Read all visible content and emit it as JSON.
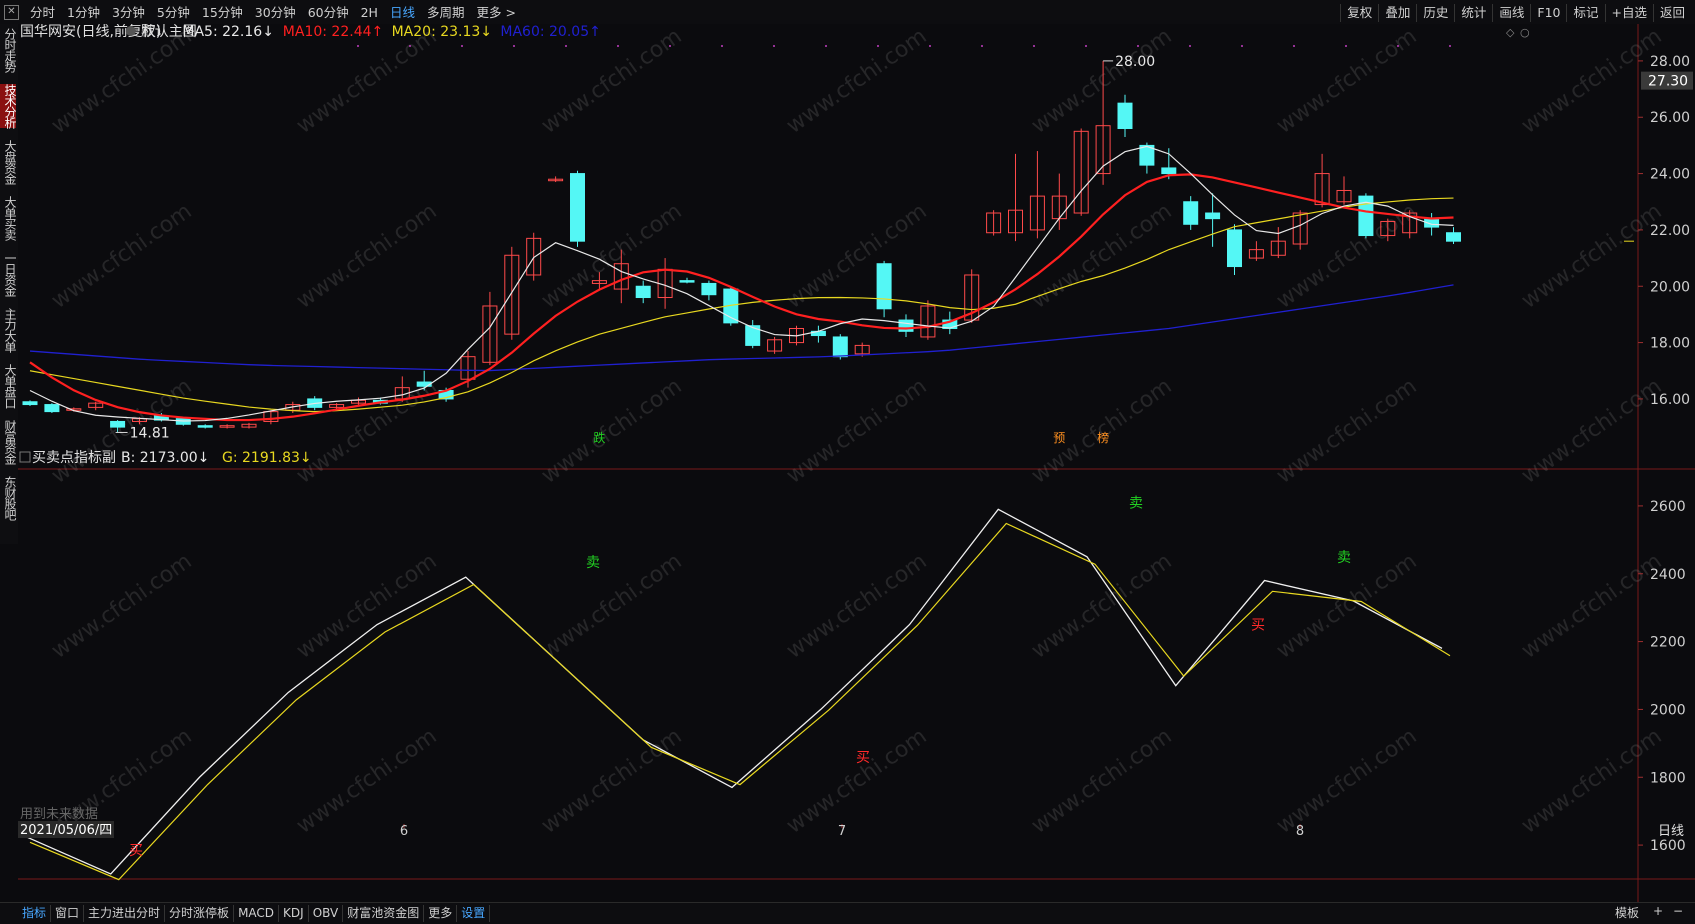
{
  "toolbar": {
    "periods": [
      "分时",
      "1分钟",
      "3分钟",
      "5分钟",
      "15分钟",
      "30分钟",
      "60分钟",
      "2H",
      "日线",
      "多周期",
      "更多 >"
    ],
    "active_period": "日线",
    "right_tools": [
      "复权",
      "叠加",
      "历史",
      "统计",
      "画线",
      "F10",
      "标记",
      "+自选",
      "返回"
    ]
  },
  "sidebar": {
    "tabs": [
      "分时走势",
      "技术分析",
      "大盘资金",
      "大单买卖",
      "一日资金",
      "主力大单",
      "大单盘口",
      "财富资金",
      "东财股吧"
    ],
    "active_tab": "技术分析"
  },
  "main_legend": {
    "stock": "国华网安",
    "mode": "(日线,前复权)",
    "template": "默认主图",
    "ma5": "MA5: 22.16↓",
    "ma10": "MA10: 22.44↑",
    "ma20": "MA20: 23.13↓",
    "ma60": "MA60: 20.05↑"
  },
  "sub_legend": {
    "name": "买卖点指标副",
    "b": "B: 2173.00↓",
    "g": "G: 2191.83↓"
  },
  "colors": {
    "up": "#ff4a4a",
    "down": "#54f7f5",
    "ma5": "#e8e8e8",
    "ma10": "#ff2020",
    "ma20": "#e8d820",
    "ma60": "#2020d0",
    "buy": "#ff2a2a",
    "sell": "#22d022"
  },
  "price_axis": [
    "28.00",
    "26.00",
    "24.00",
    "22.00",
    "20.00",
    "18.00",
    "16.00"
  ],
  "current_price": "27.30",
  "high_label": "28.00",
  "low_label": "14.81",
  "markers": [
    "跌",
    "预",
    "榜"
  ],
  "indicator_axis": [
    "2600",
    "2400",
    "2200",
    "2000",
    "1800",
    "1600"
  ],
  "buy_label": "买",
  "sell_label": "卖",
  "future_note": "用到未来数据",
  "date_label": "2021/05/06/四",
  "month_labels": [
    "6",
    "7",
    "8"
  ],
  "period_label": "日线",
  "watermark": "www.cfchi.com",
  "bottom_tabs": [
    "指标",
    "窗口",
    "主力进出分时",
    "分时涨停板",
    "MACD",
    "KDJ",
    "OBV",
    "财富池资金图",
    "更多",
    "设置"
  ],
  "bottom_active": [
    "指标",
    "设置"
  ],
  "bottom_right": [
    "模板",
    "+",
    "−"
  ],
  "chart_data": {
    "type": "candlestick",
    "candles": [
      [
        15.9,
        15.8,
        15.95,
        15.75
      ],
      [
        15.8,
        15.55,
        15.85,
        15.5
      ],
      [
        15.6,
        15.65,
        15.7,
        15.55
      ],
      [
        15.7,
        15.85,
        15.9,
        15.6
      ],
      [
        15.2,
        15.0,
        15.25,
        14.81
      ],
      [
        15.2,
        15.3,
        15.35,
        15.1
      ],
      [
        15.4,
        15.25,
        15.5,
        15.2
      ],
      [
        15.3,
        15.1,
        15.35,
        15.05
      ],
      [
        15.05,
        15.0,
        15.1,
        14.95
      ],
      [
        15.0,
        15.05,
        15.1,
        14.95
      ],
      [
        15.0,
        15.1,
        15.15,
        14.95
      ],
      [
        15.2,
        15.55,
        15.6,
        15.1
      ],
      [
        15.6,
        15.8,
        15.9,
        15.5
      ],
      [
        16.0,
        15.7,
        16.1,
        15.6
      ],
      [
        15.7,
        15.8,
        15.85,
        15.6
      ],
      [
        15.85,
        15.95,
        16.05,
        15.8
      ],
      [
        15.95,
        15.85,
        16.05,
        15.8
      ],
      [
        16.0,
        16.4,
        16.8,
        15.9
      ],
      [
        16.6,
        16.45,
        17.0,
        16.3
      ],
      [
        16.3,
        16.0,
        16.4,
        15.9
      ],
      [
        16.7,
        17.5,
        17.7,
        16.4
      ],
      [
        17.3,
        19.3,
        19.8,
        17.2
      ],
      [
        18.3,
        21.1,
        21.4,
        18.1
      ],
      [
        20.4,
        21.7,
        21.9,
        20.2
      ],
      [
        23.8,
        23.8,
        23.9,
        23.7
      ],
      [
        24.0,
        21.6,
        24.1,
        21.4
      ],
      [
        20.1,
        20.2,
        20.5,
        19.9
      ],
      [
        19.9,
        20.8,
        21.3,
        19.4
      ],
      [
        20.0,
        19.6,
        20.2,
        19.4
      ],
      [
        19.6,
        20.6,
        21.0,
        19.2
      ],
      [
        20.2,
        20.15,
        20.3,
        20.1
      ],
      [
        20.1,
        19.7,
        20.2,
        19.5
      ],
      [
        19.9,
        18.7,
        20.0,
        18.6
      ],
      [
        18.6,
        17.9,
        18.8,
        17.8
      ],
      [
        17.7,
        18.1,
        18.2,
        17.6
      ],
      [
        18.0,
        18.5,
        18.6,
        17.9
      ],
      [
        18.4,
        18.25,
        18.6,
        18.0
      ],
      [
        18.2,
        17.5,
        18.3,
        17.4
      ],
      [
        17.6,
        17.9,
        18.0,
        17.5
      ],
      [
        20.8,
        19.2,
        20.9,
        18.9
      ],
      [
        18.8,
        18.4,
        19.0,
        18.2
      ],
      [
        18.2,
        19.3,
        19.5,
        18.1
      ],
      [
        18.8,
        18.5,
        19.1,
        18.3
      ],
      [
        18.8,
        20.4,
        20.6,
        18.7
      ],
      [
        21.9,
        22.6,
        22.7,
        21.8
      ],
      [
        21.9,
        22.7,
        24.7,
        21.6
      ],
      [
        22.0,
        23.2,
        24.8,
        21.7
      ],
      [
        22.4,
        23.2,
        24.0,
        22.0
      ],
      [
        22.6,
        25.5,
        25.6,
        22.5
      ],
      [
        24.0,
        25.7,
        28.0,
        23.6
      ],
      [
        26.5,
        25.6,
        26.8,
        25.3
      ],
      [
        25.0,
        24.3,
        25.1,
        24.0
      ],
      [
        24.2,
        24.0,
        24.9,
        23.8
      ],
      [
        23.0,
        22.2,
        23.2,
        22.0
      ],
      [
        22.6,
        22.4,
        23.3,
        21.4
      ],
      [
        22.0,
        20.7,
        22.2,
        20.4
      ],
      [
        21.0,
        21.3,
        21.6,
        20.9
      ],
      [
        21.1,
        21.6,
        22.1,
        21.0
      ],
      [
        21.5,
        22.6,
        22.7,
        21.3
      ],
      [
        22.9,
        24.0,
        24.7,
        22.8
      ],
      [
        23.0,
        23.4,
        23.9,
        22.9
      ],
      [
        23.2,
        21.8,
        23.3,
        21.7
      ],
      [
        21.8,
        22.3,
        22.4,
        21.6
      ],
      [
        21.9,
        22.6,
        22.7,
        21.7
      ],
      [
        22.4,
        22.1,
        22.6,
        21.8
      ],
      [
        21.9,
        21.6,
        22.1,
        21.5
      ]
    ],
    "ma5": [
      16.3,
      15.9,
      15.55,
      15.4,
      15.35,
      15.3,
      15.25,
      15.2,
      15.25,
      15.35,
      15.5,
      15.65,
      15.8,
      15.9,
      15.95,
      16.0,
      16.1,
      16.3,
      16.8,
      17.7,
      18.5,
      19.8,
      21.1,
      21.6,
      21.2,
      20.9,
      20.4,
      20.2,
      19.95,
      19.6,
      19.1,
      18.7,
      18.35,
      18.2,
      18.3,
      18.6,
      18.85,
      18.8,
      18.7,
      18.6,
      18.5,
      18.75,
      19.3,
      20.4,
      21.5,
      22.6,
      23.6,
      24.5,
      24.9,
      25.0,
      24.5,
      23.6,
      22.9,
      22.1,
      21.8,
      22.0,
      22.5,
      22.8,
      23.0,
      22.9,
      22.5,
      22.2,
      22.16
    ],
    "ma10": [
      17.3,
      16.7,
      16.2,
      15.85,
      15.6,
      15.45,
      15.35,
      15.3,
      15.25,
      15.25,
      15.3,
      15.4,
      15.55,
      15.7,
      15.85,
      15.95,
      16.1,
      16.3,
      16.7,
      17.2,
      17.9,
      18.7,
      19.3,
      19.8,
      20.2,
      20.5,
      20.6,
      20.5,
      20.2,
      19.8,
      19.4,
      19.05,
      18.85,
      18.75,
      18.6,
      18.5,
      18.5,
      18.6,
      18.9,
      19.3,
      19.8,
      20.4,
      21.1,
      21.9,
      22.8,
      23.5,
      23.9,
      24.0,
      23.9,
      23.7,
      23.5,
      23.3,
      23.1,
      22.9,
      22.7,
      22.6,
      22.5,
      22.4,
      22.44
    ],
    "ma20": [
      17.0,
      16.8,
      16.6,
      16.4,
      16.2,
      16.0,
      15.85,
      15.7,
      15.6,
      15.55,
      15.6,
      15.7,
      15.8,
      16.0,
      16.3,
      16.8,
      17.4,
      17.9,
      18.3,
      18.6,
      18.9,
      19.1,
      19.3,
      19.45,
      19.55,
      19.6,
      19.6,
      19.55,
      19.45,
      19.25,
      19.15,
      19.3,
      19.7,
      20.1,
      20.4,
      20.8,
      21.3,
      21.7,
      22.1,
      22.3,
      22.5,
      22.7,
      22.9,
      23.0,
      23.1,
      23.13
    ],
    "ma60": [
      17.7,
      17.55,
      17.4,
      17.3,
      17.2,
      17.15,
      17.1,
      17.05,
      17.0,
      17.1,
      17.2,
      17.3,
      17.4,
      17.45,
      17.5,
      17.6,
      17.7,
      17.9,
      18.1,
      18.3,
      18.5,
      18.8,
      19.1,
      19.4,
      19.7,
      20.05
    ],
    "indicator_g": [
      1630,
      1515,
      1800,
      2050,
      2250,
      2390,
      2150,
      1910,
      1770,
      2000,
      2250,
      2590,
      2450,
      2070,
      2380,
      2320,
      2180
    ],
    "indicator_b": [
      1620,
      1510,
      1790,
      2040,
      2240,
      2380,
      2140,
      1900,
      1790,
      2010,
      2260,
      2560,
      2440,
      2110,
      2360,
      2330,
      2170
    ],
    "buy_points": [
      1585,
      1860,
      2250
    ],
    "sell_points": [
      2435,
      2610,
      2450
    ],
    "ylim": [
      14.4,
      28.6
    ],
    "indicator_ylim": [
      1500,
      2700
    ]
  }
}
